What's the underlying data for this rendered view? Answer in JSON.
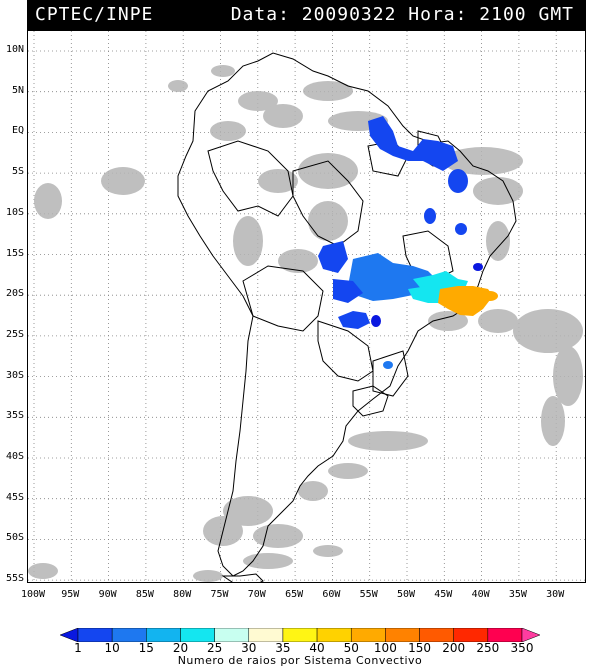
{
  "header": {
    "left": "CPTEC/INPE",
    "right": "Data: 20090322 Hora: 2100 GMT"
  },
  "lat_labels": [
    "10N",
    "5N",
    "EQ",
    "5S",
    "10S",
    "15S",
    "20S",
    "25S",
    "30S",
    "35S",
    "40S",
    "45S",
    "50S",
    "55S"
  ],
  "lon_labels": [
    "100W",
    "95W",
    "90W",
    "85W",
    "80W",
    "75W",
    "70W",
    "65W",
    "60W",
    "55W",
    "50W",
    "45W",
    "40W",
    "35W",
    "30W"
  ],
  "colorbar": {
    "values": [
      "1",
      "10",
      "15",
      "20",
      "25",
      "30",
      "35",
      "40",
      "50",
      "100",
      "150",
      "200",
      "250",
      "350"
    ],
    "colors": [
      "#0a18e0",
      "#1446f0",
      "#1e78f0",
      "#12b4f0",
      "#14e6f0",
      "#c8fff0",
      "#fffad2",
      "#fff514",
      "#ffd200",
      "#ffaa00",
      "#ff8200",
      "#ff5a00",
      "#ff2800",
      "#ff0050",
      "#ff3ca0"
    ],
    "caption": "Numero de raios por Sistema Convectivo"
  },
  "map_colors": {
    "land_outline": "#000000",
    "cloud": "#b4b4b4",
    "grid": "#808080"
  }
}
